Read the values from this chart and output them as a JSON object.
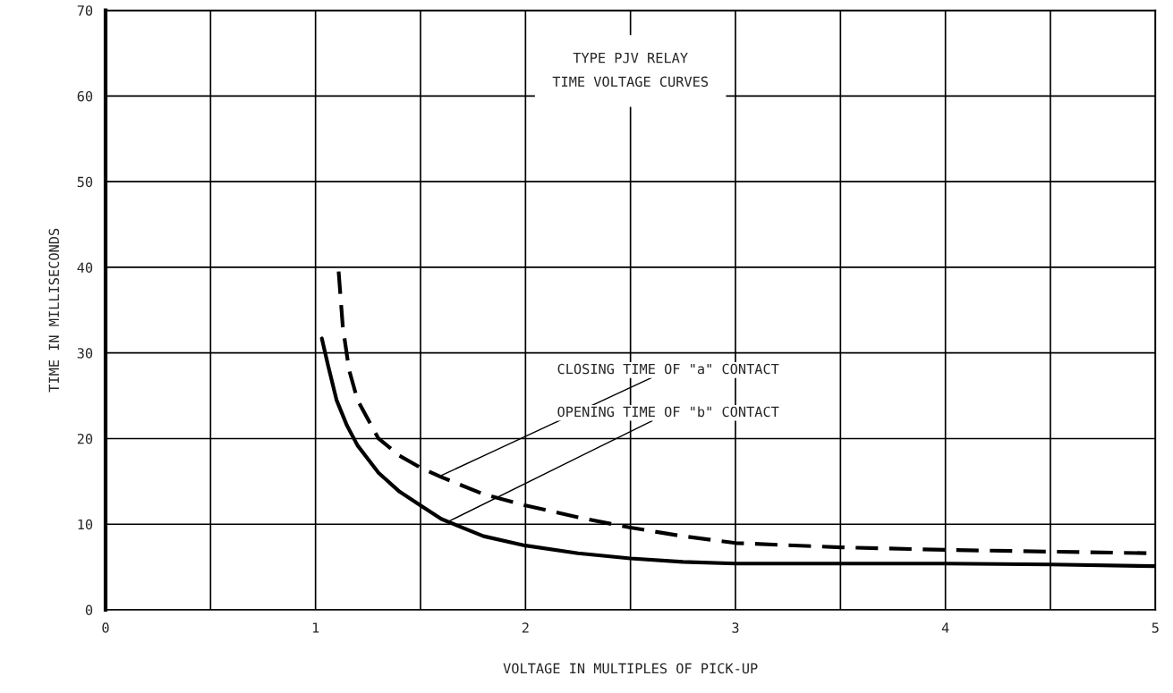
{
  "chart_data": {
    "type": "line",
    "title": "TYPE PJV RELAY\nTIME VOLTAGE CURVES",
    "xlabel": "VOLTAGE IN MULTIPLES OF PICK-UP",
    "ylabel": "TIME IN MILLISECONDS",
    "xlim": [
      0,
      5
    ],
    "ylim": [
      0,
      70
    ],
    "xticks": [
      0,
      {
        "value": 0.5,
        "label": null
      },
      1,
      {
        "value": 1.5,
        "label": null
      },
      2,
      {
        "value": 2.5,
        "label": null
      },
      3,
      {
        "value": 3.5,
        "label": null
      },
      4,
      {
        "value": 4.5,
        "label": null
      },
      5
    ],
    "yticks": [
      0,
      10,
      20,
      30,
      40,
      50,
      60,
      70
    ],
    "grid": true,
    "marker": "none",
    "series": [
      {
        "color": "#000000",
        "line_style": "dashed",
        "x": [
          1.11,
          1.13,
          1.16,
          1.2,
          1.3,
          1.4,
          1.5,
          1.6,
          1.8,
          2,
          2.25,
          2.5,
          2.75,
          3,
          3.5,
          4,
          4.5,
          5
        ],
        "values": [
          39.5,
          33,
          28,
          24.5,
          20,
          18,
          16.6,
          15.5,
          13.5,
          12.2,
          10.8,
          9.6,
          8.6,
          7.8,
          7.3,
          7,
          6.8,
          6.6
        ]
      },
      {
        "color": "#000000",
        "line_style": "solid",
        "x": [
          1.03,
          1.06,
          1.1,
          1.15,
          1.2,
          1.3,
          1.4,
          1.5,
          1.6,
          1.8,
          2,
          2.25,
          2.5,
          2.75,
          3,
          3.5,
          4,
          4.5,
          5
        ],
        "values": [
          31.7,
          28.5,
          24.5,
          21.5,
          19.2,
          16,
          13.8,
          12.2,
          10.6,
          8.6,
          7.5,
          6.6,
          6,
          5.6,
          5.4,
          5.4,
          5.4,
          5.3,
          5.1
        ]
      }
    ],
    "annotations": [
      {
        "text": "CLOSING TIME OF \"a\" CONTACT",
        "x": 1.6,
        "y": 15.7
      },
      {
        "text": "OPENING TIME OF \"b\" CONTACT",
        "x": 1.64,
        "y": 10.4
      }
    ]
  }
}
